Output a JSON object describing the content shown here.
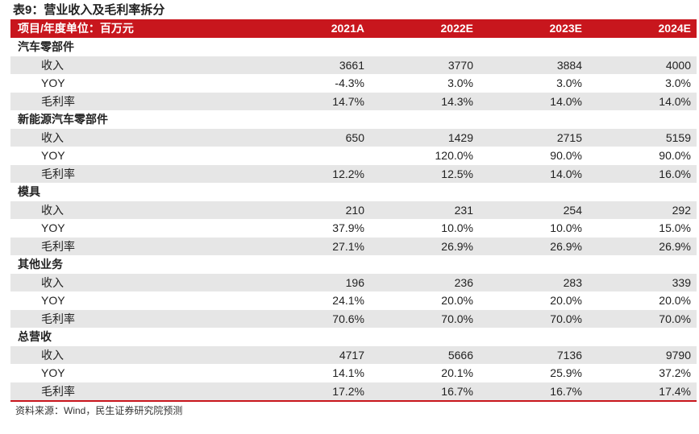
{
  "title": "表9：营业收入及毛利率拆分",
  "header": {
    "label": "项目/年度单位：百万元",
    "years": [
      "2021A",
      "2022E",
      "2023E",
      "2024E"
    ]
  },
  "sections": [
    {
      "name": "汽车零部件",
      "rows": [
        {
          "label": "收入",
          "values": [
            "3661",
            "3770",
            "3884",
            "4000"
          ]
        },
        {
          "label": "YOY",
          "values": [
            "-4.3%",
            "3.0%",
            "3.0%",
            "3.0%"
          ]
        },
        {
          "label": "毛利率",
          "values": [
            "14.7%",
            "14.3%",
            "14.0%",
            "14.0%"
          ]
        }
      ]
    },
    {
      "name": "新能源汽车零部件",
      "rows": [
        {
          "label": "收入",
          "values": [
            "650",
            "1429",
            "2715",
            "5159"
          ]
        },
        {
          "label": "YOY",
          "values": [
            "",
            "120.0%",
            "90.0%",
            "90.0%"
          ]
        },
        {
          "label": "毛利率",
          "values": [
            "12.2%",
            "12.5%",
            "14.0%",
            "16.0%"
          ]
        }
      ]
    },
    {
      "name": "模具",
      "rows": [
        {
          "label": "收入",
          "values": [
            "210",
            "231",
            "254",
            "292"
          ]
        },
        {
          "label": "YOY",
          "values": [
            "37.9%",
            "10.0%",
            "10.0%",
            "15.0%"
          ]
        },
        {
          "label": "毛利率",
          "values": [
            "27.1%",
            "26.9%",
            "26.9%",
            "26.9%"
          ]
        }
      ]
    },
    {
      "name": "其他业务",
      "rows": [
        {
          "label": "收入",
          "values": [
            "196",
            "236",
            "283",
            "339"
          ]
        },
        {
          "label": "YOY",
          "values": [
            "24.1%",
            "20.0%",
            "20.0%",
            "20.0%"
          ]
        },
        {
          "label": "毛利率",
          "values": [
            "70.6%",
            "70.0%",
            "70.0%",
            "70.0%"
          ]
        }
      ]
    },
    {
      "name": "总营收",
      "rows": [
        {
          "label": "收入",
          "values": [
            "4717",
            "5666",
            "7136",
            "9790"
          ]
        },
        {
          "label": "YOY",
          "values": [
            "14.1%",
            "20.1%",
            "25.9%",
            "37.2%"
          ]
        },
        {
          "label": "毛利率",
          "values": [
            "17.2%",
            "16.7%",
            "16.7%",
            "17.4%"
          ]
        }
      ]
    }
  ],
  "source": "资料来源：Wind，民生证券研究院预测",
  "colors": {
    "accent": "#c8161d",
    "row_shade": "#e6e6e6"
  }
}
